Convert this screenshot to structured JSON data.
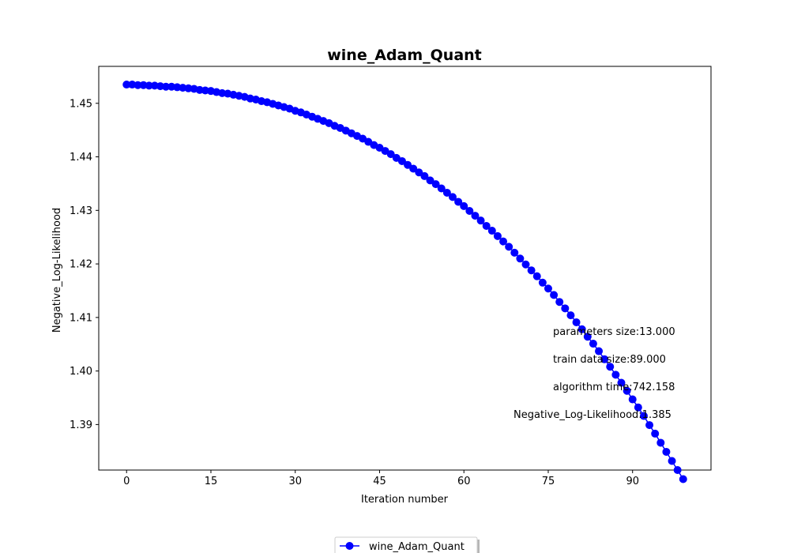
{
  "chart_data": {
    "type": "line",
    "title": "wine_Adam_Quant",
    "xlabel": "Iteration number",
    "ylabel": "Negative_Log-Likelihood",
    "xlim": [
      -4.95,
      103.95
    ],
    "ylim": [
      1.3815,
      1.4569
    ],
    "xticks": [
      0,
      15,
      30,
      45,
      60,
      75,
      90
    ],
    "yticks": [
      1.39,
      1.4,
      1.41,
      1.42,
      1.43,
      1.44,
      1.45
    ],
    "ytick_labels": [
      "1.39",
      "1.40",
      "1.41",
      "1.42",
      "1.43",
      "1.44",
      "1.45"
    ],
    "series": [
      {
        "name": "wine_Adam_Quant",
        "color": "#0000ff",
        "marker": "circle",
        "x_start": 0,
        "x_step": 1,
        "values": [
          1.4535,
          1.4535,
          1.4534,
          1.4534,
          1.4533,
          1.4533,
          1.4532,
          1.4531,
          1.4531,
          1.453,
          1.4529,
          1.4528,
          1.4527,
          1.4525,
          1.4524,
          1.4523,
          1.4521,
          1.4519,
          1.4518,
          1.4516,
          1.4514,
          1.4512,
          1.4509,
          1.4507,
          1.4504,
          1.4502,
          1.4499,
          1.4496,
          1.4493,
          1.449,
          1.4486,
          1.4483,
          1.4479,
          1.4475,
          1.4471,
          1.4467,
          1.4463,
          1.4458,
          1.4454,
          1.4449,
          1.4444,
          1.4439,
          1.4434,
          1.4428,
          1.4422,
          1.4417,
          1.4411,
          1.4405,
          1.4398,
          1.4392,
          1.4385,
          1.4378,
          1.4371,
          1.4364,
          1.4356,
          1.4349,
          1.4341,
          1.4333,
          1.4325,
          1.4316,
          1.4308,
          1.4299,
          1.429,
          1.4281,
          1.4271,
          1.4262,
          1.4252,
          1.4242,
          1.4232,
          1.4221,
          1.421,
          1.4199,
          1.4188,
          1.4177,
          1.4165,
          1.4154,
          1.4142,
          1.4129,
          1.4117,
          1.4104,
          1.4091,
          1.4078,
          1.4064,
          1.4051,
          1.4037,
          1.4022,
          1.4008,
          1.3993,
          1.3978,
          1.3963,
          1.3947,
          1.3932,
          1.3916,
          1.3899,
          1.3883,
          1.3866,
          1.3849,
          1.3832,
          1.3815,
          1.3798
        ]
      }
    ],
    "annotations": [
      "parameters size:13.000",
      "train data size:89.000",
      "algorithm time:742.158",
      "Negative_Log-Likelihood:1.385"
    ],
    "legend_position": "bottom-center",
    "grid": false
  }
}
